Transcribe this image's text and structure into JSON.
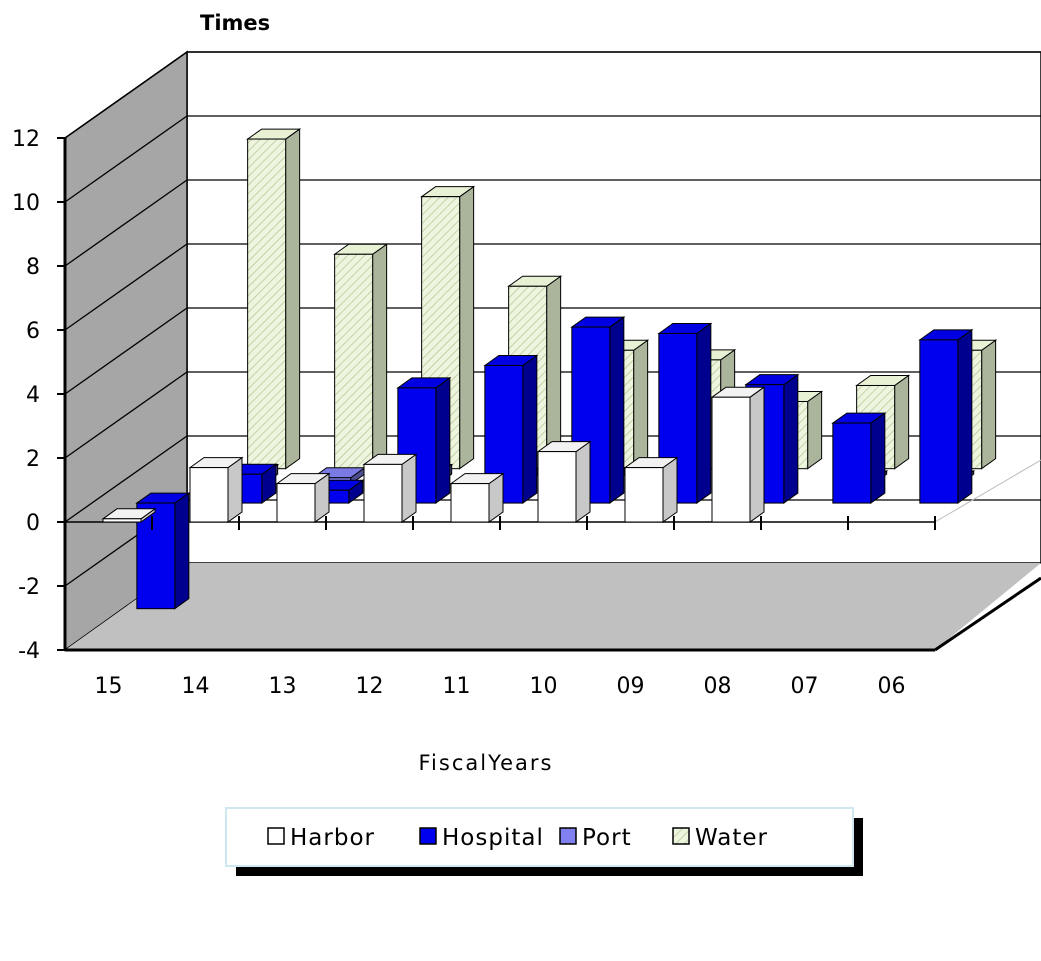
{
  "chart_data": {
    "type": "bar",
    "title": "",
    "ylabel": "Times",
    "xlabel": "FiscalYears",
    "categories": [
      "15",
      "14",
      "13",
      "12",
      "11",
      "10",
      "09",
      "08",
      "07",
      "06"
    ],
    "ylim": [
      -4,
      12
    ],
    "yticks": [
      -4,
      -2,
      0,
      2,
      4,
      6,
      8,
      10,
      12
    ],
    "series": [
      {
        "name": "Harbor",
        "values": [
          0.1,
          1.7,
          1.2,
          1.8,
          1.2,
          2.2,
          1.7,
          3.9,
          null,
          null
        ]
      },
      {
        "name": "Hospital",
        "values": [
          -3.3,
          0.9,
          0.4,
          3.6,
          4.3,
          5.5,
          5.3,
          3.7,
          2.5,
          5.1
        ]
      },
      {
        "name": "Port",
        "values": [
          null,
          0.3,
          0.2,
          0.3,
          0.2,
          0.2,
          null,
          null,
          0.1,
          0.1
        ]
      },
      {
        "name": "Water",
        "values": [
          null,
          10.3,
          6.7,
          8.5,
          5.7,
          3.7,
          3.4,
          2.1,
          2.6,
          3.7
        ]
      }
    ],
    "colors": {
      "Harbor": "#ffffff",
      "Hospital": "#0000ee",
      "Port": "#8080f0",
      "Water": "#eef5de"
    },
    "legend_position": "bottom",
    "grid": true,
    "style": "3d-column"
  }
}
